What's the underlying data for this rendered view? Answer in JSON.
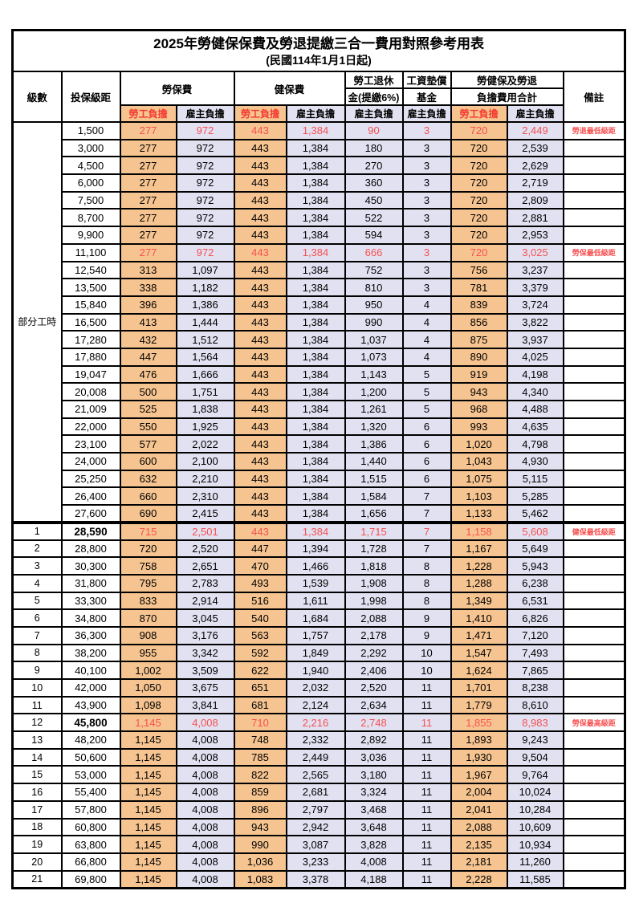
{
  "title": "2025年勞健保保費及勞退提繳三合一費用對照參考用表",
  "subtitle": "(民國114年1月1日起)",
  "colors": {
    "employee_fill": "#f6c490",
    "employer_fill": "#e1e1f2",
    "highlight_red": "#f85050",
    "header_red": "#f43b30",
    "border": "#000000"
  },
  "header": {
    "level": "級數",
    "bracket": "投保級距",
    "labor_ins": "勞保費",
    "health_ins": "健保費",
    "pension_line1": "勞工退休",
    "pension_line2": "金(提繳6%)",
    "wage_fund_line1": "工資墊償",
    "wage_fund_line2": "基金",
    "total_line1": "勞健保及勞退",
    "total_line2": "負擔費用合計",
    "remark": "備註",
    "employee": "勞工負擔",
    "employer": "雇主負擔"
  },
  "table": {
    "group_label": "部分工時",
    "group_rowspan": 23,
    "rows": [
      {
        "level": null,
        "bracket": "1,500",
        "v": [
          "277",
          "972",
          "443",
          "1,384",
          "90",
          "3",
          "720",
          "2,449"
        ],
        "remark": "勞退最低級距",
        "red": true,
        "group_start": true
      },
      {
        "level": null,
        "bracket": "3,000",
        "v": [
          "277",
          "972",
          "443",
          "1,384",
          "180",
          "3",
          "720",
          "2,539"
        ],
        "remark": ""
      },
      {
        "level": null,
        "bracket": "4,500",
        "v": [
          "277",
          "972",
          "443",
          "1,384",
          "270",
          "3",
          "720",
          "2,629"
        ],
        "remark": ""
      },
      {
        "level": null,
        "bracket": "6,000",
        "v": [
          "277",
          "972",
          "443",
          "1,384",
          "360",
          "3",
          "720",
          "2,719"
        ],
        "remark": ""
      },
      {
        "level": null,
        "bracket": "7,500",
        "v": [
          "277",
          "972",
          "443",
          "1,384",
          "450",
          "3",
          "720",
          "2,809"
        ],
        "remark": ""
      },
      {
        "level": null,
        "bracket": "8,700",
        "v": [
          "277",
          "972",
          "443",
          "1,384",
          "522",
          "3",
          "720",
          "2,881"
        ],
        "remark": ""
      },
      {
        "level": null,
        "bracket": "9,900",
        "v": [
          "277",
          "972",
          "443",
          "1,384",
          "594",
          "3",
          "720",
          "2,953"
        ],
        "remark": ""
      },
      {
        "level": null,
        "bracket": "11,100",
        "v": [
          "277",
          "972",
          "443",
          "1,384",
          "666",
          "3",
          "720",
          "3,025"
        ],
        "remark": "勞保最低級距",
        "red": true
      },
      {
        "level": null,
        "bracket": "12,540",
        "v": [
          "313",
          "1,097",
          "443",
          "1,384",
          "752",
          "3",
          "756",
          "3,237"
        ],
        "remark": ""
      },
      {
        "level": null,
        "bracket": "13,500",
        "v": [
          "338",
          "1,182",
          "443",
          "1,384",
          "810",
          "3",
          "781",
          "3,379"
        ],
        "remark": ""
      },
      {
        "level": null,
        "bracket": "15,840",
        "v": [
          "396",
          "1,386",
          "443",
          "1,384",
          "950",
          "4",
          "839",
          "3,724"
        ],
        "remark": ""
      },
      {
        "level": null,
        "bracket": "16,500",
        "v": [
          "413",
          "1,444",
          "443",
          "1,384",
          "990",
          "4",
          "856",
          "3,822"
        ],
        "remark": ""
      },
      {
        "level": null,
        "bracket": "17,280",
        "v": [
          "432",
          "1,512",
          "443",
          "1,384",
          "1,037",
          "4",
          "875",
          "3,937"
        ],
        "remark": ""
      },
      {
        "level": null,
        "bracket": "17,880",
        "v": [
          "447",
          "1,564",
          "443",
          "1,384",
          "1,073",
          "4",
          "890",
          "4,025"
        ],
        "remark": ""
      },
      {
        "level": null,
        "bracket": "19,047",
        "v": [
          "476",
          "1,666",
          "443",
          "1,384",
          "1,143",
          "5",
          "919",
          "4,198"
        ],
        "remark": ""
      },
      {
        "level": null,
        "bracket": "20,008",
        "v": [
          "500",
          "1,751",
          "443",
          "1,384",
          "1,200",
          "5",
          "943",
          "4,340"
        ],
        "remark": ""
      },
      {
        "level": null,
        "bracket": "21,009",
        "v": [
          "525",
          "1,838",
          "443",
          "1,384",
          "1,261",
          "5",
          "968",
          "4,488"
        ],
        "remark": ""
      },
      {
        "level": null,
        "bracket": "22,000",
        "v": [
          "550",
          "1,925",
          "443",
          "1,384",
          "1,320",
          "6",
          "993",
          "4,635"
        ],
        "remark": ""
      },
      {
        "level": null,
        "bracket": "23,100",
        "v": [
          "577",
          "2,022",
          "443",
          "1,384",
          "1,386",
          "6",
          "1,020",
          "4,798"
        ],
        "remark": ""
      },
      {
        "level": null,
        "bracket": "24,000",
        "v": [
          "600",
          "2,100",
          "443",
          "1,384",
          "1,440",
          "6",
          "1,043",
          "4,930"
        ],
        "remark": ""
      },
      {
        "level": null,
        "bracket": "25,250",
        "v": [
          "632",
          "2,210",
          "443",
          "1,384",
          "1,515",
          "6",
          "1,075",
          "5,115"
        ],
        "remark": ""
      },
      {
        "level": null,
        "bracket": "26,400",
        "v": [
          "660",
          "2,310",
          "443",
          "1,384",
          "1,584",
          "7",
          "1,103",
          "5,285"
        ],
        "remark": ""
      },
      {
        "level": null,
        "bracket": "27,600",
        "v": [
          "690",
          "2,415",
          "443",
          "1,384",
          "1,656",
          "7",
          "1,133",
          "5,462"
        ],
        "remark": ""
      },
      {
        "level": "1",
        "bracket": "28,590",
        "v": [
          "715",
          "2,501",
          "443",
          "1,384",
          "1,715",
          "7",
          "1,158",
          "5,608"
        ],
        "remark": "健保最低級距",
        "red": true,
        "bold": true,
        "thick_top": true
      },
      {
        "level": "2",
        "bracket": "28,800",
        "v": [
          "720",
          "2,520",
          "447",
          "1,394",
          "1,728",
          "7",
          "1,167",
          "5,649"
        ],
        "remark": ""
      },
      {
        "level": "3",
        "bracket": "30,300",
        "v": [
          "758",
          "2,651",
          "470",
          "1,466",
          "1,818",
          "8",
          "1,228",
          "5,943"
        ],
        "remark": ""
      },
      {
        "level": "4",
        "bracket": "31,800",
        "v": [
          "795",
          "2,783",
          "493",
          "1,539",
          "1,908",
          "8",
          "1,288",
          "6,238"
        ],
        "remark": ""
      },
      {
        "level": "5",
        "bracket": "33,300",
        "v": [
          "833",
          "2,914",
          "516",
          "1,611",
          "1,998",
          "8",
          "1,349",
          "6,531"
        ],
        "remark": ""
      },
      {
        "level": "6",
        "bracket": "34,800",
        "v": [
          "870",
          "3,045",
          "540",
          "1,684",
          "2,088",
          "9",
          "1,410",
          "6,826"
        ],
        "remark": ""
      },
      {
        "level": "7",
        "bracket": "36,300",
        "v": [
          "908",
          "3,176",
          "563",
          "1,757",
          "2,178",
          "9",
          "1,471",
          "7,120"
        ],
        "remark": ""
      },
      {
        "level": "8",
        "bracket": "38,200",
        "v": [
          "955",
          "3,342",
          "592",
          "1,849",
          "2,292",
          "10",
          "1,547",
          "7,493"
        ],
        "remark": ""
      },
      {
        "level": "9",
        "bracket": "40,100",
        "v": [
          "1,002",
          "3,509",
          "622",
          "1,940",
          "2,406",
          "10",
          "1,624",
          "7,865"
        ],
        "remark": ""
      },
      {
        "level": "10",
        "bracket": "42,000",
        "v": [
          "1,050",
          "3,675",
          "651",
          "2,032",
          "2,520",
          "11",
          "1,701",
          "8,238"
        ],
        "remark": ""
      },
      {
        "level": "11",
        "bracket": "43,900",
        "v": [
          "1,098",
          "3,841",
          "681",
          "2,124",
          "2,634",
          "11",
          "1,779",
          "8,610"
        ],
        "remark": ""
      },
      {
        "level": "12",
        "bracket": "45,800",
        "v": [
          "1,145",
          "4,008",
          "710",
          "2,216",
          "2,748",
          "11",
          "1,855",
          "8,983"
        ],
        "remark": "勞保最高級距",
        "red": true,
        "bold": true
      },
      {
        "level": "13",
        "bracket": "48,200",
        "v": [
          "1,145",
          "4,008",
          "748",
          "2,332",
          "2,892",
          "11",
          "1,893",
          "9,243"
        ],
        "remark": ""
      },
      {
        "level": "14",
        "bracket": "50,600",
        "v": [
          "1,145",
          "4,008",
          "785",
          "2,449",
          "3,036",
          "11",
          "1,930",
          "9,504"
        ],
        "remark": ""
      },
      {
        "level": "15",
        "bracket": "53,000",
        "v": [
          "1,145",
          "4,008",
          "822",
          "2,565",
          "3,180",
          "11",
          "1,967",
          "9,764"
        ],
        "remark": ""
      },
      {
        "level": "16",
        "bracket": "55,400",
        "v": [
          "1,145",
          "4,008",
          "859",
          "2,681",
          "3,324",
          "11",
          "2,004",
          "10,024"
        ],
        "remark": ""
      },
      {
        "level": "17",
        "bracket": "57,800",
        "v": [
          "1,145",
          "4,008",
          "896",
          "2,797",
          "3,468",
          "11",
          "2,041",
          "10,284"
        ],
        "remark": ""
      },
      {
        "level": "18",
        "bracket": "60,800",
        "v": [
          "1,145",
          "4,008",
          "943",
          "2,942",
          "3,648",
          "11",
          "2,088",
          "10,609"
        ],
        "remark": ""
      },
      {
        "level": "19",
        "bracket": "63,800",
        "v": [
          "1,145",
          "4,008",
          "990",
          "3,087",
          "3,828",
          "11",
          "2,135",
          "10,934"
        ],
        "remark": ""
      },
      {
        "level": "20",
        "bracket": "66,800",
        "v": [
          "1,145",
          "4,008",
          "1,036",
          "3,233",
          "4,008",
          "11",
          "2,181",
          "11,260"
        ],
        "remark": ""
      },
      {
        "level": "21",
        "bracket": "69,800",
        "v": [
          "1,145",
          "4,008",
          "1,083",
          "3,378",
          "4,188",
          "11",
          "2,228",
          "11,585"
        ],
        "remark": ""
      }
    ]
  }
}
